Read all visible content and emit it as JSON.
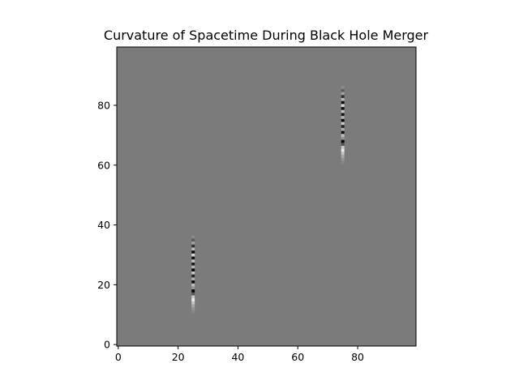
{
  "chart_data": {
    "type": "heatmap",
    "title": "Curvature of Spacetime During Black Hole Merger",
    "xlabel": "",
    "ylabel": "",
    "grid_size": [
      100,
      100
    ],
    "xlim": [
      -0.5,
      99.5
    ],
    "ylim": [
      99.5,
      -0.5
    ],
    "x_ticks": [
      0,
      20,
      40,
      60,
      80
    ],
    "y_ticks": [
      0,
      20,
      40,
      60,
      80
    ],
    "colormap": "gray",
    "background_value": 0.0,
    "background_color": "#7b7b7b",
    "features": [
      {
        "name": "",
        "x": 25,
        "y_start": 12,
        "y_end": 37,
        "profile": [
          0.1,
          0.2,
          0.35,
          0.55,
          0.85,
          0.6,
          -0.3,
          -0.95,
          0.2,
          0.5,
          -0.9,
          0.4,
          -0.7,
          0.6,
          -0.95,
          0.45,
          -0.8,
          0.55,
          -0.85,
          0.7,
          -0.9,
          0.5,
          -0.6,
          0.3,
          -0.25,
          0.1
        ]
      },
      {
        "name": "",
        "x": 75,
        "y_start": 62,
        "y_end": 87,
        "profile": [
          0.1,
          0.2,
          0.35,
          0.55,
          0.85,
          0.6,
          -0.3,
          -0.95,
          0.2,
          0.5,
          -0.9,
          0.4,
          -0.7,
          0.6,
          -0.95,
          0.45,
          -0.8,
          0.55,
          -0.85,
          0.7,
          -0.9,
          0.5,
          -0.6,
          0.3,
          -0.25,
          0.1
        ]
      }
    ]
  }
}
